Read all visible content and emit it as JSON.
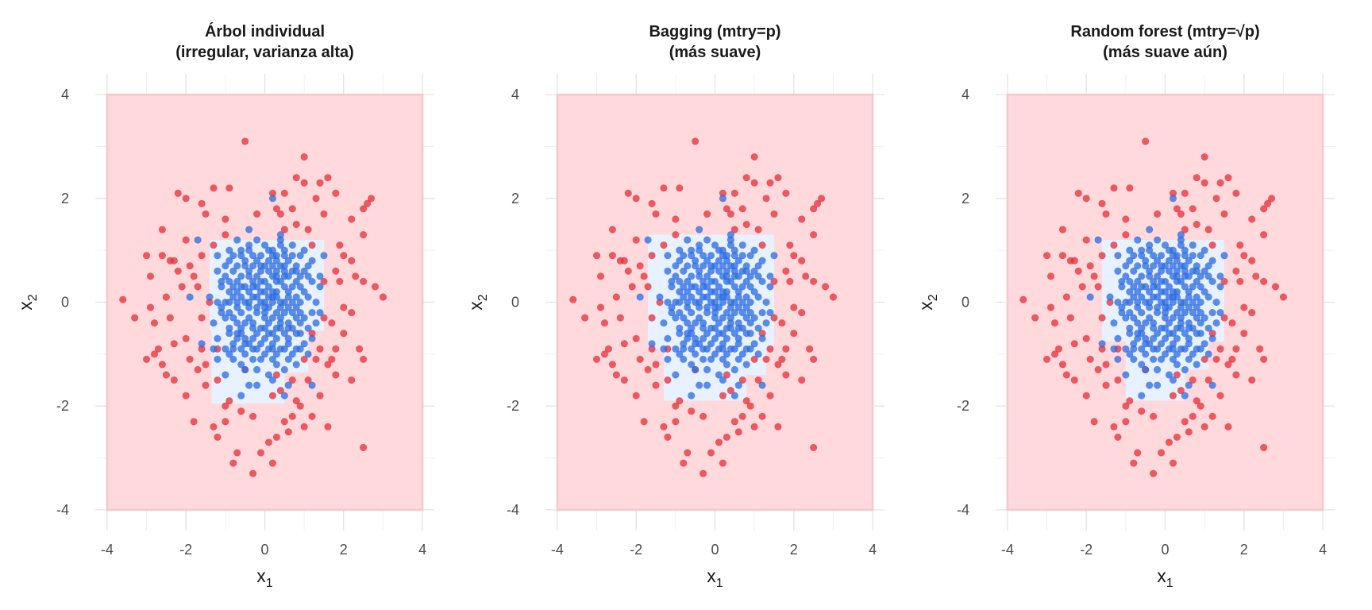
{
  "chart_data": [
    {
      "type": "scatter",
      "title": [
        "Árbol individual",
        "(irregular, varianza alta)"
      ],
      "xlabel": "x",
      "xlabel_sub": "1",
      "ylabel": "x",
      "ylabel_sub": "2",
      "xlim": [
        -4.3,
        4.3
      ],
      "ylim": [
        -4.4,
        4.4
      ],
      "xticks": [
        -4,
        -2,
        0,
        2,
        4
      ],
      "yticks": [
        -4,
        -2,
        0,
        2,
        4
      ],
      "xtick_labels": [
        "-4",
        "-2",
        "0",
        "2",
        "4"
      ],
      "ytick_labels": [
        "-4",
        "-2",
        "0",
        "2",
        "4"
      ],
      "grid": true,
      "region_outer": {
        "x": [
          -4,
          4
        ],
        "y": [
          -4,
          4
        ]
      },
      "blue_regions": [
        {
          "x": [
            -1.4,
            1.5
          ],
          "y": [
            -0.55,
            1.2
          ]
        },
        {
          "x": [
            -1.35,
            0.5
          ],
          "y": [
            -1.95,
            0.0
          ]
        },
        {
          "x": [
            0.5,
            1.1
          ],
          "y": [
            -1.35,
            -0.6
          ]
        }
      ]
    },
    {
      "type": "scatter",
      "title": [
        "Bagging (mtry=p)",
        "(más suave)"
      ],
      "xlabel": "x",
      "xlabel_sub": "1",
      "ylabel": "x",
      "ylabel_sub": "2",
      "xlim": [
        -4.3,
        4.3
      ],
      "ylim": [
        -4.4,
        4.4
      ],
      "xticks": [
        -4,
        -2,
        0,
        2,
        4
      ],
      "yticks": [
        -4,
        -2,
        0,
        2,
        4
      ],
      "xtick_labels": [
        "-4",
        "-2",
        "0",
        "2",
        "4"
      ],
      "ytick_labels": [
        "-4",
        "-2",
        "0",
        "2",
        "4"
      ],
      "grid": true,
      "region_outer": {
        "x": [
          -4,
          4
        ],
        "y": [
          -4,
          4
        ]
      },
      "blue_regions": [
        {
          "x": [
            -1.7,
            1.5
          ],
          "y": [
            -0.9,
            1.3
          ]
        },
        {
          "x": [
            -1.3,
            0.8
          ],
          "y": [
            -1.9,
            1.3
          ]
        },
        {
          "x": [
            0.8,
            1.3
          ],
          "y": [
            -1.4,
            -0.8
          ]
        }
      ]
    },
    {
      "type": "scatter",
      "title": [
        "Random forest (mtry=√p)",
        "(más suave aún)"
      ],
      "xlabel": "x",
      "xlabel_sub": "1",
      "ylabel": "x",
      "ylabel_sub": "2",
      "xlim": [
        -4.3,
        4.3
      ],
      "ylim": [
        -4.4,
        4.4
      ],
      "xticks": [
        -4,
        -2,
        0,
        2,
        4
      ],
      "yticks": [
        -4,
        -2,
        0,
        2,
        4
      ],
      "xtick_labels": [
        "-4",
        "-2",
        "0",
        "2",
        "4"
      ],
      "ytick_labels": [
        "-4",
        "-2",
        "0",
        "2",
        "4"
      ],
      "grid": true,
      "region_outer": {
        "x": [
          -4,
          4
        ],
        "y": [
          -4,
          4
        ]
      },
      "blue_regions": [
        {
          "x": [
            -1.6,
            1.5
          ],
          "y": [
            -0.75,
            1.2
          ]
        },
        {
          "x": [
            -1.0,
            0.5
          ],
          "y": [
            -1.9,
            1.2
          ]
        },
        {
          "x": [
            0.5,
            1.1
          ],
          "y": [
            -1.3,
            -0.6
          ]
        }
      ]
    }
  ],
  "points": {
    "blue": [
      [
        -0.6,
        0.3
      ],
      [
        0.2,
        0.1
      ],
      [
        0.0,
        -0.2
      ],
      [
        0.5,
        0.5
      ],
      [
        -0.3,
        -0.5
      ],
      [
        0.8,
        -0.3
      ],
      [
        -0.9,
        0.8
      ],
      [
        0.3,
        0.9
      ],
      [
        -0.1,
        0.6
      ],
      [
        0.6,
        -0.8
      ],
      [
        -0.5,
        -1.0
      ],
      [
        1.0,
        0.2
      ],
      [
        -1.1,
        -0.2
      ],
      [
        0.1,
        -0.9
      ],
      [
        0.4,
        -0.4
      ],
      [
        -0.7,
        -0.7
      ],
      [
        0.9,
        0.9
      ],
      [
        -0.4,
        1.0
      ],
      [
        0.7,
        0.3
      ],
      [
        -0.2,
        -0.1
      ],
      [
        0.2,
        -0.6
      ],
      [
        -0.8,
        0.1
      ],
      [
        1.1,
        -0.5
      ],
      [
        0.0,
        1.1
      ],
      [
        -0.6,
        -0.2
      ],
      [
        0.5,
        0.0
      ],
      [
        -0.3,
        0.4
      ],
      [
        0.3,
        -1.2
      ],
      [
        -1.0,
        0.5
      ],
      [
        0.8,
        0.7
      ],
      [
        -0.1,
        -0.8
      ],
      [
        0.6,
        -0.1
      ],
      [
        -0.5,
        0.7
      ],
      [
        1.2,
        0.4
      ],
      [
        0.1,
        0.3
      ],
      [
        -0.9,
        -0.5
      ],
      [
        0.4,
        1.2
      ],
      [
        -0.2,
        -1.3
      ],
      [
        0.7,
        -1.0
      ],
      [
        -1.2,
        0.9
      ],
      [
        0.0,
        0.0
      ],
      [
        0.3,
        0.6
      ],
      [
        -0.4,
        -0.3
      ],
      [
        0.9,
        -0.2
      ],
      [
        -0.7,
        0.4
      ],
      [
        0.2,
        -0.3
      ],
      [
        -0.3,
        0.9
      ],
      [
        0.5,
        -0.6
      ],
      [
        -0.8,
        -1.1
      ],
      [
        1.3,
        0.0
      ],
      [
        0.1,
        0.8
      ],
      [
        -0.6,
        -0.6
      ],
      [
        0.8,
        0.1
      ],
      [
        -0.1,
        0.2
      ],
      [
        0.4,
        -0.9
      ],
      [
        -1.0,
        -0.9
      ],
      [
        0.6,
        0.8
      ],
      [
        -0.2,
        0.5
      ],
      [
        1.0,
        -0.8
      ],
      [
        -0.5,
        0.0
      ],
      [
        0.0,
        -0.5
      ],
      [
        0.3,
        0.2
      ],
      [
        -0.9,
        0.2
      ],
      [
        0.7,
        -0.5
      ],
      [
        -0.3,
        -0.9
      ],
      [
        0.2,
        1.0
      ],
      [
        -0.7,
        1.2
      ],
      [
        1.1,
        0.7
      ],
      [
        0.5,
        -1.3
      ],
      [
        -1.3,
        -0.4
      ],
      [
        0.1,
        -0.1
      ],
      [
        -0.4,
        0.6
      ],
      [
        0.9,
        0.5
      ],
      [
        -0.1,
        -1.1
      ],
      [
        0.6,
        0.2
      ],
      [
        -0.8,
        -0.3
      ],
      [
        0.3,
        -0.7
      ],
      [
        -0.6,
        0.9
      ],
      [
        1.2,
        -0.2
      ],
      [
        0.0,
        0.4
      ],
      [
        -1.1,
        0.3
      ],
      [
        0.4,
        0.7
      ],
      [
        -0.2,
        -0.6
      ],
      [
        0.8,
        -0.9
      ],
      [
        -0.5,
        -1.3
      ],
      [
        0.2,
        0.5
      ],
      [
        -0.9,
        1.0
      ],
      [
        0.5,
        0.3
      ],
      [
        -0.3,
        0.1
      ],
      [
        1.0,
        1.0
      ],
      [
        -0.7,
        -0.1
      ],
      [
        0.1,
        -1.4
      ],
      [
        0.7,
        0.6
      ],
      [
        -0.4,
        -0.8
      ],
      [
        0.3,
        -0.2
      ],
      [
        -1.2,
        -0.7
      ],
      [
        0.6,
        -0.4
      ],
      [
        -0.1,
        0.9
      ],
      [
        0.9,
        -0.6
      ],
      [
        -0.6,
        0.5
      ],
      [
        0.2,
        0.0
      ],
      [
        -0.8,
        -0.9
      ],
      [
        0.4,
        0.4
      ],
      [
        -0.2,
        1.2
      ],
      [
        1.1,
        -1.0
      ],
      [
        -0.5,
        0.3
      ],
      [
        0.0,
        -0.3
      ],
      [
        0.8,
        0.4
      ],
      [
        -1.0,
        0.7
      ],
      [
        0.3,
        -1.0
      ],
      [
        -0.3,
        -0.4
      ],
      [
        0.5,
        1.0
      ],
      [
        -0.7,
        0.0
      ],
      [
        1.4,
        0.3
      ],
      [
        0.1,
        0.6
      ],
      [
        -0.9,
        -0.2
      ],
      [
        0.6,
        -0.7
      ],
      [
        -0.4,
        0.2
      ],
      [
        0.2,
        -0.8
      ],
      [
        -0.6,
        -0.5
      ],
      [
        0.9,
        0.0
      ],
      [
        -0.1,
        0.0
      ],
      [
        0.4,
        -0.5
      ],
      [
        -1.1,
        -0.1
      ],
      [
        0.7,
        0.9
      ],
      [
        -0.2,
        -0.2
      ],
      [
        0.0,
        0.7
      ],
      [
        -0.8,
        0.6
      ],
      [
        0.3,
        0.1
      ],
      [
        1.2,
        0.8
      ],
      [
        -0.5,
        -0.7
      ],
      [
        0.1,
        -0.6
      ],
      [
        -0.3,
        0.7
      ],
      [
        0.6,
        -1.1
      ],
      [
        -0.9,
        -1.0
      ],
      [
        0.5,
        0.6
      ],
      [
        -1.4,
        0.1
      ],
      [
        0.8,
        -0.1
      ],
      [
        -0.2,
        0.3
      ],
      [
        0.2,
        -1.1
      ],
      [
        -0.7,
        -0.4
      ],
      [
        1.0,
        0.6
      ],
      [
        -0.4,
        1.1
      ],
      [
        0.3,
        0.4
      ],
      [
        -0.6,
        -1.2
      ],
      [
        0.9,
        -0.4
      ],
      [
        0.0,
        -0.7
      ],
      [
        -1.0,
        0.0
      ],
      [
        0.5,
        -0.2
      ],
      [
        -0.1,
        0.4
      ],
      [
        0.7,
        0.0
      ],
      [
        -0.8,
        0.3
      ],
      [
        0.2,
        0.7
      ],
      [
        -0.3,
        -1.1
      ],
      [
        1.1,
        0.1
      ],
      [
        -0.5,
        0.8
      ],
      [
        0.4,
        -0.1
      ],
      [
        -1.2,
        0.6
      ],
      [
        0.6,
        0.5
      ],
      [
        0.1,
        -0.4
      ],
      [
        -0.4,
        -0.1
      ],
      [
        0.8,
        -0.6
      ],
      [
        -0.7,
        0.7
      ],
      [
        0.3,
        -0.5
      ],
      [
        -0.2,
        0.8
      ],
      [
        1.3,
        -0.4
      ],
      [
        -0.9,
        -0.6
      ],
      [
        0.0,
        0.2
      ],
      [
        0.5,
        0.9
      ],
      [
        -0.6,
        0.1
      ],
      [
        0.2,
        -0.9
      ],
      [
        -1.3,
        -0.9
      ],
      [
        0.7,
        -0.2
      ],
      [
        -0.1,
        -0.5
      ],
      [
        0.9,
        0.3
      ],
      [
        -0.4,
        0.5
      ],
      [
        0.4,
        0.0
      ],
      [
        -0.8,
        -0.8
      ],
      [
        0.1,
        1.0
      ],
      [
        -0.3,
        -0.7
      ],
      [
        0.6,
        0.1
      ],
      [
        -1.1,
        0.4
      ],
      [
        1.0,
        -0.3
      ],
      [
        -0.5,
        -0.4
      ],
      [
        0.3,
        0.8
      ],
      [
        -0.2,
        -0.9
      ],
      [
        0.8,
        0.6
      ],
      [
        -0.7,
        -0.6
      ],
      [
        0.2,
        0.2
      ],
      [
        -0.6,
        1.0
      ],
      [
        1.2,
        -0.7
      ],
      [
        0.0,
        -1.0
      ],
      [
        -0.9,
        0.4
      ],
      [
        0.5,
        -0.9
      ],
      [
        -0.4,
        0.0
      ],
      [
        0.7,
        1.1
      ],
      [
        -1.0,
        -0.3
      ],
      [
        0.1,
        0.1
      ],
      [
        -0.3,
        0.3
      ],
      [
        0.9,
        -0.9
      ],
      [
        -0.8,
        0.9
      ],
      [
        0.4,
        -0.3
      ],
      [
        -0.1,
        0.7
      ],
      [
        0.6,
        -0.5
      ],
      [
        -0.5,
        -0.8
      ],
      [
        0.3,
        0.5
      ],
      [
        -1.2,
        0.0
      ],
      [
        1.1,
        0.5
      ],
      [
        -0.7,
        0.2
      ],
      [
        0.0,
        -0.1
      ],
      [
        0.2,
        0.9
      ],
      [
        -0.6,
        -0.9
      ],
      [
        0.8,
        -1.2
      ],
      [
        -0.2,
        0.1
      ],
      [
        0.5,
        0.7
      ],
      [
        -0.9,
        0.0
      ],
      [
        0.4,
        1.1
      ],
      [
        -1.2,
        -1.1
      ],
      [
        1.5,
        0.9
      ],
      [
        0.6,
        -1.6
      ],
      [
        -0.2,
        -1.6
      ],
      [
        0.2,
        -1.5
      ],
      [
        -0.4,
        -1.6
      ],
      [
        -0.6,
        -1.8
      ],
      [
        0.5,
        -1.8
      ],
      [
        -1.6,
        -0.8
      ],
      [
        1.2,
        -1.6
      ],
      [
        -1.0,
        -1.4
      ],
      [
        1.4,
        -0.2
      ],
      [
        0.4,
        1.3
      ],
      [
        -0.4,
        1.4
      ],
      [
        -1.9,
        0.1
      ],
      [
        0.2,
        2.0
      ],
      [
        -1.7,
        1.2
      ],
      [
        1.4,
        0.5
      ]
    ],
    "red": [
      [
        -3.6,
        0.05
      ],
      [
        -3.0,
        0.9
      ],
      [
        -2.9,
        0.5
      ],
      [
        -2.6,
        0.9
      ],
      [
        -2.4,
        0.8
      ],
      [
        -2.3,
        0.8
      ],
      [
        -2.1,
        0.3
      ],
      [
        -2.4,
        -0.3
      ],
      [
        -2.8,
        -0.4
      ],
      [
        -2.9,
        -0.1
      ],
      [
        -2.5,
        0.1
      ],
      [
        -3.3,
        -0.3
      ],
      [
        -2.2,
        2.1
      ],
      [
        -2.0,
        2.0
      ],
      [
        -2.6,
        1.4
      ],
      [
        -1.6,
        1.9
      ],
      [
        -1.5,
        1.7
      ],
      [
        -1.3,
        2.2
      ],
      [
        -0.9,
        2.2
      ],
      [
        -1.0,
        1.6
      ],
      [
        -0.5,
        3.1
      ],
      [
        -0.2,
        1.7
      ],
      [
        0.3,
        1.8
      ],
      [
        0.4,
        1.7
      ],
      [
        0.2,
        2.1
      ],
      [
        0.5,
        2.1
      ],
      [
        0.7,
        1.8
      ],
      [
        0.8,
        2.4
      ],
      [
        1.0,
        2.8
      ],
      [
        1.0,
        2.3
      ],
      [
        1.3,
        2.0
      ],
      [
        1.4,
        2.3
      ],
      [
        1.5,
        1.7
      ],
      [
        1.6,
        2.4
      ],
      [
        1.8,
        2.1
      ],
      [
        2.2,
        1.6
      ],
      [
        2.5,
        1.3
      ],
      [
        2.6,
        1.9
      ],
      [
        2.7,
        2.0
      ],
      [
        2.5,
        1.8
      ],
      [
        1.9,
        1.1
      ],
      [
        2.0,
        0.9
      ],
      [
        2.2,
        0.8
      ],
      [
        2.3,
        0.5
      ],
      [
        2.5,
        0.4
      ],
      [
        2.8,
        0.3
      ],
      [
        3.0,
        0.1
      ],
      [
        2.2,
        -0.2
      ],
      [
        2.4,
        -0.9
      ],
      [
        2.0,
        -0.6
      ],
      [
        1.8,
        -0.9
      ],
      [
        1.7,
        -1.1
      ],
      [
        1.8,
        -1.4
      ],
      [
        2.2,
        -1.5
      ],
      [
        2.5,
        -1.1
      ],
      [
        2.5,
        -2.8
      ],
      [
        1.6,
        -2.4
      ],
      [
        1.2,
        -2.2
      ],
      [
        1.0,
        -2.4
      ],
      [
        0.7,
        -2.2
      ],
      [
        0.5,
        -2.3
      ],
      [
        0.3,
        -2.6
      ],
      [
        0.1,
        -2.7
      ],
      [
        -0.1,
        -2.9
      ],
      [
        0.2,
        -3.1
      ],
      [
        -0.3,
        -3.3
      ],
      [
        -0.7,
        -2.9
      ],
      [
        -0.8,
        -3.1
      ],
      [
        -1.0,
        -2.3
      ],
      [
        -1.3,
        -2.4
      ],
      [
        -1.2,
        -2.6
      ],
      [
        -1.8,
        -2.3
      ],
      [
        -2.0,
        -1.8
      ],
      [
        -2.3,
        -1.5
      ],
      [
        -2.5,
        -1.4
      ],
      [
        -2.6,
        -1.2
      ],
      [
        -2.8,
        -1.0
      ],
      [
        -3.0,
        -1.1
      ],
      [
        -2.7,
        -0.9
      ],
      [
        -2.3,
        -0.8
      ],
      [
        -2.0,
        -0.7
      ],
      [
        -1.9,
        -1.1
      ],
      [
        -1.6,
        -0.9
      ],
      [
        -1.7,
        -1.3
      ],
      [
        -1.5,
        -1.6
      ],
      [
        -1.2,
        -1.5
      ],
      [
        -0.9,
        -1.9
      ],
      [
        -0.6,
        -2.1
      ],
      [
        0.2,
        -1.8
      ],
      [
        0.4,
        -1.7
      ],
      [
        0.8,
        -1.9
      ],
      [
        1.1,
        -1.5
      ],
      [
        1.3,
        -1.1
      ],
      [
        1.4,
        -0.9
      ],
      [
        1.5,
        -0.3
      ],
      [
        1.7,
        -0.4
      ],
      [
        1.9,
        0.4
      ],
      [
        2.0,
        -0.1
      ],
      [
        1.8,
        0.6
      ],
      [
        1.5,
        0.4
      ],
      [
        1.2,
        1.1
      ],
      [
        1.1,
        1.4
      ],
      [
        0.8,
        1.5
      ],
      [
        0.5,
        1.4
      ],
      [
        -1.0,
        1.3
      ],
      [
        -1.3,
        1.1
      ],
      [
        -1.6,
        0.9
      ],
      [
        -1.9,
        0.7
      ],
      [
        -2.0,
        1.2
      ],
      [
        -1.7,
        0.3
      ],
      [
        -1.4,
        0.0
      ],
      [
        -1.6,
        -0.3
      ],
      [
        -1.8,
        0.5
      ],
      [
        -2.2,
        0.6
      ],
      [
        -1.2,
        -0.9
      ],
      [
        -1.5,
        -1.2
      ],
      [
        -1.0,
        -2.0
      ],
      [
        -0.3,
        -2.2
      ],
      [
        0.6,
        -2.5
      ],
      [
        0.9,
        -2.0
      ],
      [
        1.4,
        -1.8
      ],
      [
        1.6,
        -1.2
      ],
      [
        1.2,
        -0.6
      ],
      [
        1.0,
        -1.1
      ],
      [
        0.7,
        -1.5
      ],
      [
        0.3,
        -1.4
      ],
      [
        -0.5,
        -1.3
      ]
    ]
  }
}
